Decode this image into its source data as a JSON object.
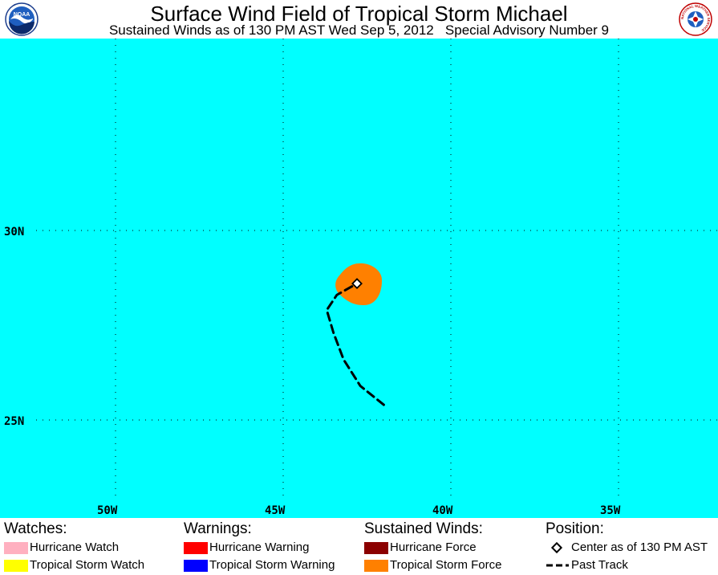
{
  "header": {
    "title": "Surface Wind Field of Tropical Storm Michael",
    "subtitle": "Sustained Winds as of 130 PM AST Wed Sep 5, 2012   Special Advisory Number 9",
    "logo_left": {
      "text": "NOAA",
      "icon": "noaa-logo"
    },
    "logo_right": {
      "text": "NATIONAL WEATHER SERVICE",
      "icon": "nws-logo"
    }
  },
  "map": {
    "ocean_color": "#00ffff",
    "longitude_labels": [
      "50W",
      "45W",
      "40W",
      "35W"
    ],
    "latitude_labels": [
      "30N",
      "25N"
    ],
    "storm_center": {
      "lat": 28.6,
      "lon": -42.8
    },
    "past_track": [
      {
        "lat": 25.4,
        "lon": -42.0
      },
      {
        "lat": 25.9,
        "lon": -42.7
      },
      {
        "lat": 26.6,
        "lon": -43.2
      },
      {
        "lat": 27.3,
        "lon": -43.5
      },
      {
        "lat": 27.9,
        "lon": -43.7
      },
      {
        "lat": 28.3,
        "lon": -43.4
      },
      {
        "lat": 28.6,
        "lon": -42.8
      }
    ],
    "tropical_storm_force_color": "#ff8000"
  },
  "legend": {
    "watches": {
      "heading": "Watches:",
      "items": [
        {
          "label": "Hurricane Watch",
          "color": "#ffb0c0"
        },
        {
          "label": "Tropical Storm Watch",
          "color": "#ffff00"
        }
      ]
    },
    "warnings": {
      "heading": "Warnings:",
      "items": [
        {
          "label": "Hurricane Warning",
          "color": "#ff0000"
        },
        {
          "label": "Tropical Storm Warning",
          "color": "#0000ff"
        }
      ]
    },
    "winds": {
      "heading": "Sustained Winds:",
      "items": [
        {
          "label": "Hurricane Force",
          "color": "#8b0000"
        },
        {
          "label": "Tropical Storm Force",
          "color": "#ff8000"
        }
      ]
    },
    "position": {
      "heading": "Position:",
      "items": [
        {
          "label": "Center as of 130 PM AST",
          "icon": "diamond-marker-icon"
        },
        {
          "label": "Past Track",
          "icon": "dashed-line-icon"
        }
      ]
    }
  }
}
